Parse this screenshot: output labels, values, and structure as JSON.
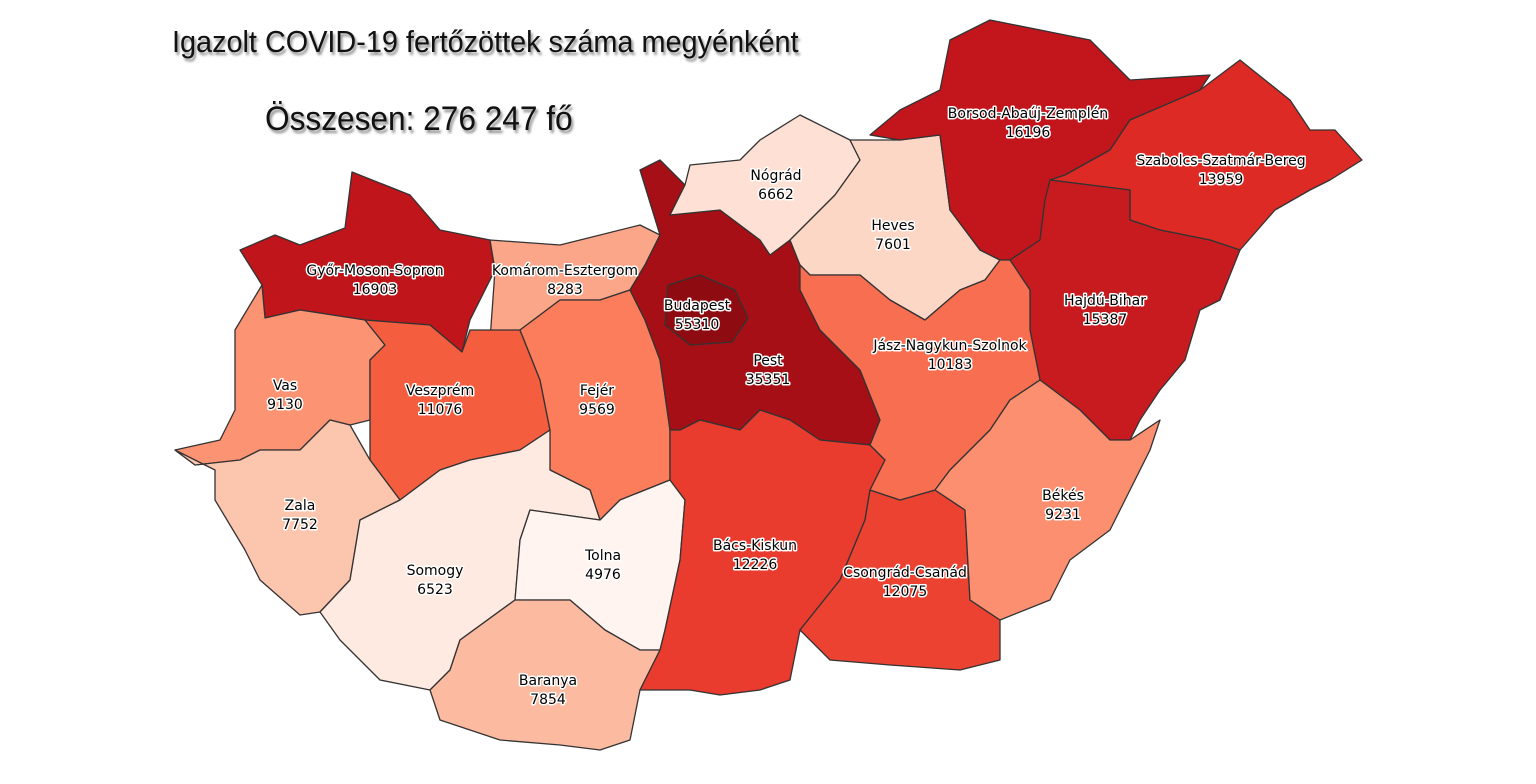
{
  "title": "Igazolt COVID-19 fertőzöttek száma megyénként",
  "total_label": "Összesen: 276 247 fő",
  "counties": [
    {
      "name": "Győr-Moson-Sopron",
      "value": "16903",
      "color": "#bf151b"
    },
    {
      "name": "Komárom-Esztergom",
      "value": "8283",
      "color": "#fca689"
    },
    {
      "name": "Vas",
      "value": "9130",
      "color": "#fc9373"
    },
    {
      "name": "Veszprém",
      "value": "11076",
      "color": "#f55d3f"
    },
    {
      "name": "Fejér",
      "value": "9569",
      "color": "#fb7d5c"
    },
    {
      "name": "Zala",
      "value": "7752",
      "color": "#fcc5ae"
    },
    {
      "name": "Somogy",
      "value": "6523",
      "color": "#feeae0"
    },
    {
      "name": "Tolna",
      "value": "4976",
      "color": "#fff4ef"
    },
    {
      "name": "Baranya",
      "value": "7854",
      "color": "#fcbaa0"
    },
    {
      "name": "Pest",
      "value": "35351",
      "color": "#a50f15"
    },
    {
      "name": "Budapest",
      "value": "55310",
      "color": "#8f0b12"
    },
    {
      "name": "Bács-Kiskun",
      "value": "12226",
      "color": "#e93b2e"
    },
    {
      "name": "Csongrád-Csanád",
      "value": "12075",
      "color": "#ec4232"
    },
    {
      "name": "Nógrád",
      "value": "6662",
      "color": "#fee1d4"
    },
    {
      "name": "Heves",
      "value": "7601",
      "color": "#fdd7c6"
    },
    {
      "name": "Borsod-Abaúj-Zemplén",
      "value": "16196",
      "color": "#c2161c"
    },
    {
      "name": "Szabolcs-Szatmár-Bereg",
      "value": "13959",
      "color": "#dd2a25"
    },
    {
      "name": "Hajdú-Bihar",
      "value": "15387",
      "color": "#c81b1f"
    },
    {
      "name": "Jász-Nagykun-Szolnok",
      "value": "10183",
      "color": "#f86e50"
    },
    {
      "name": "Békés",
      "value": "9231",
      "color": "#fc8f6f"
    }
  ]
}
